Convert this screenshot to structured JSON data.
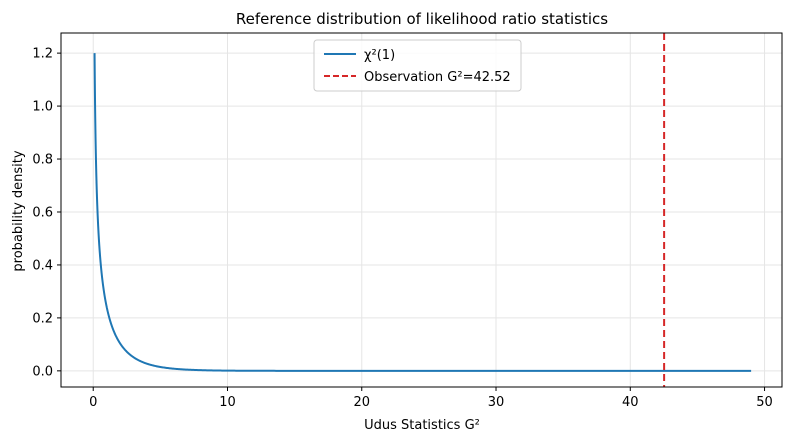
{
  "chart_data": {
    "type": "line",
    "title": "Reference distribution of likelihood ratio statistics",
    "xlabel": "Udus Statistics G²",
    "ylabel": "probability density",
    "xlim": [
      -2.4,
      51.3
    ],
    "ylim": [
      -0.061,
      1.276
    ],
    "x_ticks": [
      0,
      10,
      20,
      30,
      40,
      50
    ],
    "y_ticks": [
      0.0,
      0.2,
      0.4,
      0.6,
      0.8,
      1.0,
      1.2
    ],
    "x_tick_labels": [
      "0",
      "10",
      "20",
      "30",
      "40",
      "50"
    ],
    "y_tick_labels": [
      "0.0",
      "0.2",
      "0.4",
      "0.6",
      "0.8",
      "1.0",
      "1.2"
    ],
    "grid": true,
    "legend_position": "top-center",
    "series": [
      {
        "name": "χ²(1)",
        "kind": "line",
        "color": "#1f77b4",
        "distribution": "chi-square pdf, df = 1",
        "x_range": [
          0.1,
          49.0
        ]
      },
      {
        "name": "Observation G²=42.52",
        "kind": "vertical-dashed-line",
        "color": "#d62728",
        "x": 42.52
      }
    ]
  }
}
